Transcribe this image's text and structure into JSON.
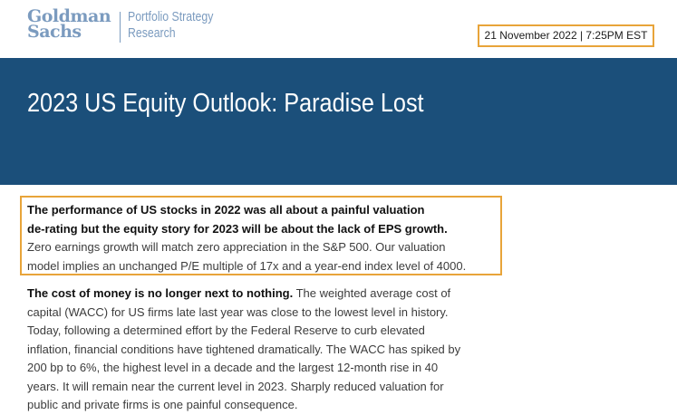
{
  "header": {
    "logo_line1": "Goldman",
    "logo_line2": "Sachs",
    "division_line1": "Portfolio Strategy",
    "division_line2": "Research",
    "date": "21 November 2022 | 7:25PM EST"
  },
  "banner": {
    "title": "2023 US Equity Outlook: Paradise Lost"
  },
  "body": {
    "p1": {
      "bold_lines": [
        "The performance of US stocks in 2022 was all about a painful valuation",
        "de-rating but the equity story for 2023 will be about the lack of EPS growth."
      ],
      "lines": [
        "Zero earnings growth will match zero appreciation in the S&P 500. Our valuation",
        "model implies an unchanged P/E multiple of 17x and a year-end index level of 4000."
      ]
    },
    "p2": {
      "bold_lead": "The cost of money is no longer next to nothing.",
      "line1_rest": " The weighted average cost of",
      "lines": [
        "capital (WACC) for US firms late last year was close to the lowest level in history.",
        "Today, following a determined effort by the Federal Reserve to curb elevated",
        "inflation, financial conditions have tightened dramatically. The WACC has spiked by",
        "200 bp to 6%, the highest level in a decade and the largest 12-month rise in 40",
        "years. It will remain near the current level in 2023. Sharply reduced valuation for",
        "public and private firms is one painful consequence."
      ]
    }
  }
}
